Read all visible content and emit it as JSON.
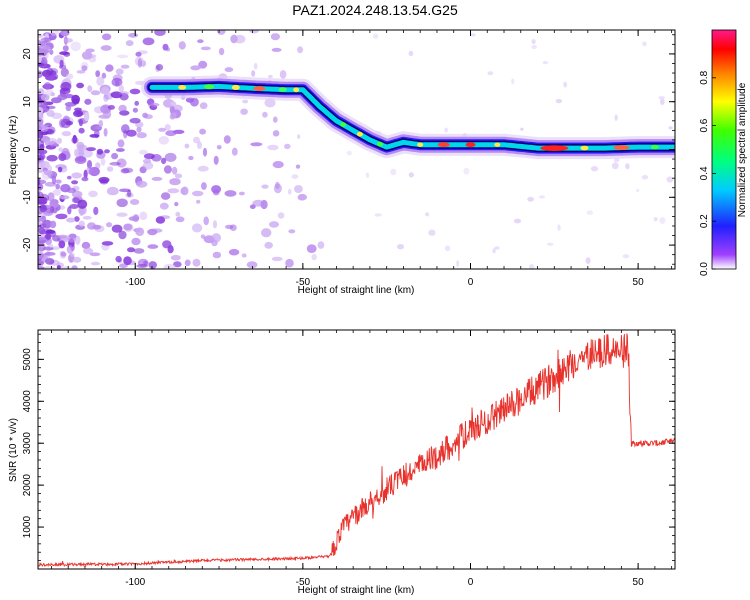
{
  "title": "PAZ1.2024.248.13.54.G25",
  "colors": {
    "snr_line": "#e8312b",
    "axis": "#000000"
  },
  "chart_data": [
    {
      "type": "heatmap",
      "xlabel": "Height of straight line (km)",
      "ylabel": "Frequency (Hz)",
      "xlim": [
        -129,
        61
      ],
      "ylim": [
        -25,
        25
      ],
      "xticks": [
        -100,
        -50,
        0,
        50
      ],
      "yticks": [
        -20,
        -10,
        0,
        10,
        20
      ],
      "colorbar": {
        "label": "Normalized spectral amplitude",
        "range": [
          0,
          1
        ],
        "ticks": [
          "0.0",
          "0.2",
          "0.4",
          "0.6",
          "0.8"
        ]
      },
      "ridge": {
        "x": [
          -95,
          -85,
          -75,
          -65,
          -55,
          -50,
          -45,
          -40,
          -35,
          -30,
          -25,
          -20,
          -15,
          -10,
          -5,
          0,
          10,
          20,
          30,
          40,
          50,
          61
        ],
        "y": [
          13,
          13,
          13.2,
          12.8,
          12.5,
          12.5,
          9,
          6,
          4,
          2,
          0.5,
          1.5,
          1,
          1,
          1,
          1,
          1,
          0.3,
          0.3,
          0.3,
          0.5,
          0.5
        ]
      }
    },
    {
      "type": "line",
      "xlabel": "Height of straight line (km)",
      "ylabel": "SNR (10 * v/v)",
      "xlim": [
        -129,
        61
      ],
      "ylim": [
        0,
        5700
      ],
      "xticks": [
        -100,
        -50,
        0,
        50
      ],
      "yticks": [
        1000,
        2000,
        3000,
        4000,
        5000
      ],
      "trend": {
        "x": [
          -129,
          -100,
          -80,
          -60,
          -50,
          -42,
          -38,
          -30,
          -20,
          -10,
          0,
          10,
          20,
          30,
          38,
          47,
          48,
          52,
          56,
          61
        ],
        "y": [
          100,
          120,
          200,
          240,
          260,
          300,
          1000,
          1600,
          2200,
          2700,
          3300,
          3800,
          4300,
          4900,
          5200,
          5200,
          3000,
          3000,
          3000,
          3050
        ]
      }
    }
  ]
}
